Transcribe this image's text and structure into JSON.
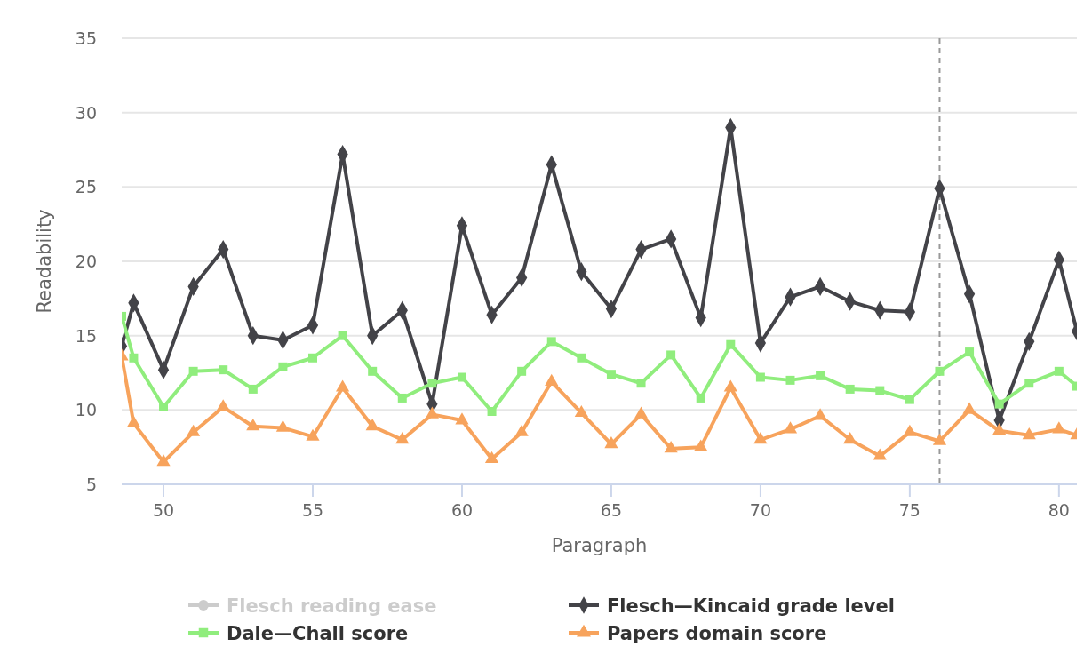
{
  "chart_data": {
    "type": "line",
    "xlabel": "Paragraph",
    "ylabel": "Readability",
    "xlim": [
      48.6,
      80.6
    ],
    "xticks": [
      50,
      55,
      60,
      65,
      70,
      75,
      80
    ],
    "ylim": [
      5,
      35
    ],
    "yticks": [
      5,
      10,
      15,
      20,
      25,
      30,
      35
    ],
    "grid": "y",
    "legend": "bottom",
    "ref_lines": [
      {
        "axis": "x",
        "value": 76,
        "color": "#999999",
        "line_style": "dashed"
      }
    ],
    "series": [
      {
        "name": "Flesch reading ease",
        "color": "#cccccc",
        "marker": "circle"
      },
      {
        "name": "Flesch—Kincaid grade level",
        "color": "#434348",
        "marker": "diamond",
        "x": [
          48.6,
          49,
          50,
          51,
          52,
          53,
          54,
          55,
          56,
          57,
          58,
          59,
          60,
          61,
          62,
          63,
          64,
          65,
          66,
          67,
          68,
          69,
          70,
          71,
          72,
          73,
          74,
          75,
          76,
          77,
          78,
          79,
          80,
          80.6
        ],
        "values": [
          14.3,
          17.2,
          12.7,
          18.3,
          20.8,
          15.0,
          14.7,
          15.7,
          27.2,
          15.0,
          16.7,
          10.4,
          22.4,
          16.4,
          18.9,
          26.5,
          19.3,
          16.8,
          20.8,
          21.5,
          16.2,
          29.0,
          14.5,
          17.6,
          18.3,
          17.3,
          16.7,
          16.6,
          24.9,
          17.8,
          9.3,
          14.6,
          20.1,
          15.3
        ]
      },
      {
        "name": "Dale—Chall score",
        "color": "#90ed7d",
        "marker": "square",
        "x": [
          48.6,
          49,
          50,
          51,
          52,
          53,
          54,
          55,
          56,
          57,
          58,
          59,
          60,
          61,
          62,
          63,
          64,
          65,
          66,
          67,
          68,
          69,
          70,
          71,
          72,
          73,
          74,
          75,
          76,
          77,
          78,
          79,
          80,
          80.6
        ],
        "values": [
          16.3,
          13.5,
          10.2,
          12.6,
          12.7,
          11.4,
          12.9,
          13.5,
          15.0,
          12.6,
          10.8,
          11.8,
          12.2,
          9.9,
          12.6,
          14.6,
          13.5,
          12.4,
          11.8,
          13.7,
          10.8,
          14.4,
          12.2,
          12.0,
          12.3,
          11.4,
          11.3,
          10.7,
          12.6,
          13.9,
          10.4,
          11.8,
          12.6,
          11.6
        ]
      },
      {
        "name": "Papers domain score",
        "color": "#f7a35c",
        "marker": "triangle",
        "x": [
          48.6,
          49,
          50,
          51,
          52,
          53,
          54,
          55,
          56,
          57,
          58,
          59,
          60,
          61,
          62,
          63,
          64,
          65,
          66,
          67,
          68,
          69,
          70,
          71,
          72,
          73,
          74,
          75,
          76,
          77,
          78,
          79,
          80,
          80.6
        ],
        "values": [
          13.6,
          9.1,
          6.5,
          8.5,
          10.2,
          8.9,
          8.8,
          8.2,
          11.5,
          8.9,
          8.0,
          9.7,
          9.3,
          6.7,
          8.5,
          11.9,
          9.8,
          7.7,
          9.7,
          7.4,
          7.5,
          11.5,
          8.0,
          8.7,
          9.6,
          8.0,
          6.9,
          8.5,
          7.9,
          10.0,
          8.6,
          8.3,
          8.7,
          8.3
        ]
      }
    ]
  }
}
